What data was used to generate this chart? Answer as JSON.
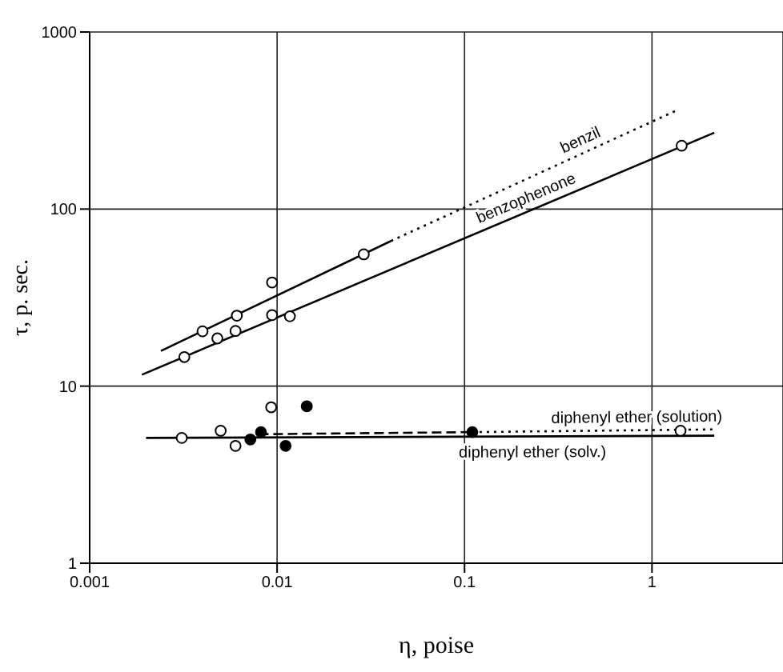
{
  "chart_data": {
    "type": "scatter",
    "xlabel": "η, poise",
    "ylabel": "τ, p. sec.",
    "log": "xy",
    "grid": true,
    "xlim": [
      0.001,
      5
    ],
    "xticks": [
      0.001,
      0.01,
      0.1,
      1
    ],
    "ylim": [
      1,
      1000
    ],
    "yticks": [
      1,
      10,
      100,
      1000
    ],
    "series": [
      {
        "marker": "circle",
        "color": "#ffffff",
        "x": [
          0.004,
          0.0061,
          0.0094,
          0.029
        ],
        "values": [
          20.4,
          25,
          38.5,
          55.5
        ]
      },
      {
        "marker": "circle",
        "color": "#ffffff",
        "x": [
          0.0032,
          0.0048,
          0.006,
          0.0094,
          0.0117,
          1.44
        ],
        "values": [
          14.6,
          18.6,
          20.5,
          25.2,
          24.8,
          228
        ]
      },
      {
        "marker": "circle",
        "color": "#ffffff",
        "x": [
          0.0031,
          0.005,
          0.006,
          0.0093,
          1.42
        ],
        "values": [
          5.1,
          5.6,
          4.6,
          7.6,
          5.6
        ]
      },
      {
        "marker": "circle",
        "color": "#000000",
        "x": [
          0.0072,
          0.0082,
          0.0111,
          0.0144,
          0.11
        ],
        "values": [
          5,
          5.5,
          4.6,
          7.7,
          5.5
        ]
      },
      {
        "type": "line",
        "line_style": "solid",
        "color": "#000000",
        "x": [
          0.0024,
          0.0405
        ],
        "values": [
          15.8,
          66
        ]
      },
      {
        "type": "line",
        "name": "benzil",
        "line_style": "dotted",
        "color": "#000000",
        "x": [
          0.0405,
          1.37
        ],
        "values": [
          66,
          363
        ]
      },
      {
        "type": "line",
        "name": "benzophenone",
        "line_style": "solid",
        "color": "#000000",
        "x": [
          0.0019,
          2.15
        ],
        "values": [
          11.6,
          270
        ]
      },
      {
        "type": "line",
        "line_style": "dashed",
        "color": "#000000",
        "x": [
          0.008,
          0.11
        ],
        "values": [
          5.35,
          5.5
        ]
      },
      {
        "type": "line",
        "name": "diphenyl ether (solution)",
        "line_style": "dotted",
        "color": "#000000",
        "x": [
          0.11,
          2.15
        ],
        "values": [
          5.5,
          5.7
        ]
      },
      {
        "type": "line",
        "name": "diphenyl ether (solv.)",
        "line_style": "solid",
        "color": "#000000",
        "x": [
          0.002,
          2.15
        ],
        "values": [
          5.1,
          5.25
        ]
      }
    ]
  }
}
